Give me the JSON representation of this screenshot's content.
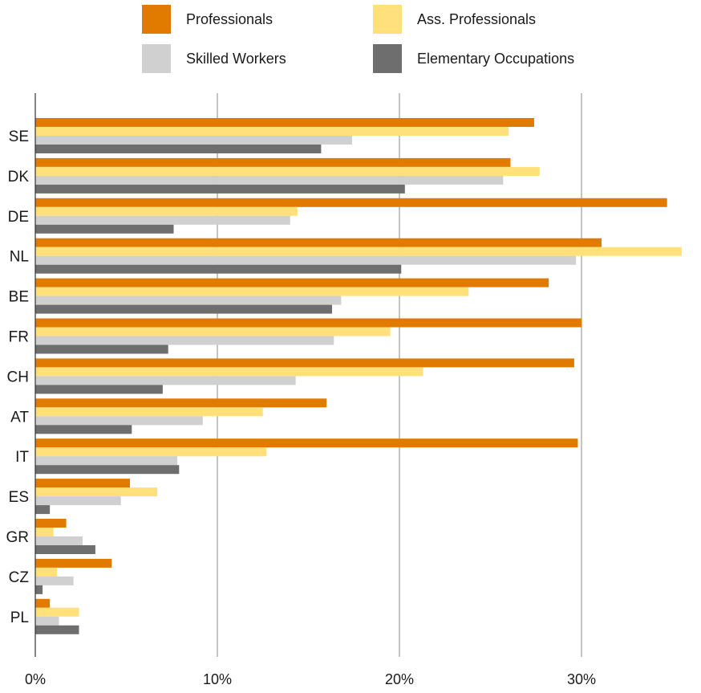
{
  "chart_data": {
    "type": "bar",
    "orientation": "horizontal",
    "categories": [
      "SE",
      "DK",
      "DE",
      "NL",
      "BE",
      "FR",
      "CH",
      "AT",
      "IT",
      "ES",
      "GR",
      "CZ",
      "PL"
    ],
    "series": [
      {
        "name": "Professionals",
        "color": "#E07B00",
        "values": [
          27.4,
          26.1,
          34.7,
          31.1,
          28.2,
          30.0,
          29.6,
          16.0,
          29.8,
          5.2,
          1.7,
          4.2,
          0.8
        ]
      },
      {
        "name": "Ass. Professionals",
        "color": "#FFE07A",
        "values": [
          26.0,
          27.7,
          14.4,
          35.5,
          23.8,
          19.5,
          21.3,
          12.5,
          12.7,
          6.7,
          1.0,
          1.2,
          2.4
        ]
      },
      {
        "name": "Skilled Workers",
        "color": "#D0D0D0",
        "values": [
          17.4,
          25.7,
          14.0,
          29.7,
          16.8,
          16.4,
          14.3,
          9.2,
          7.8,
          4.7,
          2.6,
          2.1,
          1.3
        ]
      },
      {
        "name": "Elementary Occupations",
        "color": "#6E6E6E",
        "values": [
          15.7,
          20.3,
          7.6,
          20.1,
          16.3,
          7.3,
          7.0,
          5.3,
          7.9,
          0.8,
          3.3,
          0.4,
          2.4
        ]
      }
    ],
    "xlim": [
      0,
      36
    ],
    "xticks": [
      0,
      10,
      20,
      30
    ],
    "xtick_labels": [
      "0%",
      "10%",
      "20%",
      "30%"
    ],
    "grid": "vertical",
    "legend_position": "top"
  }
}
